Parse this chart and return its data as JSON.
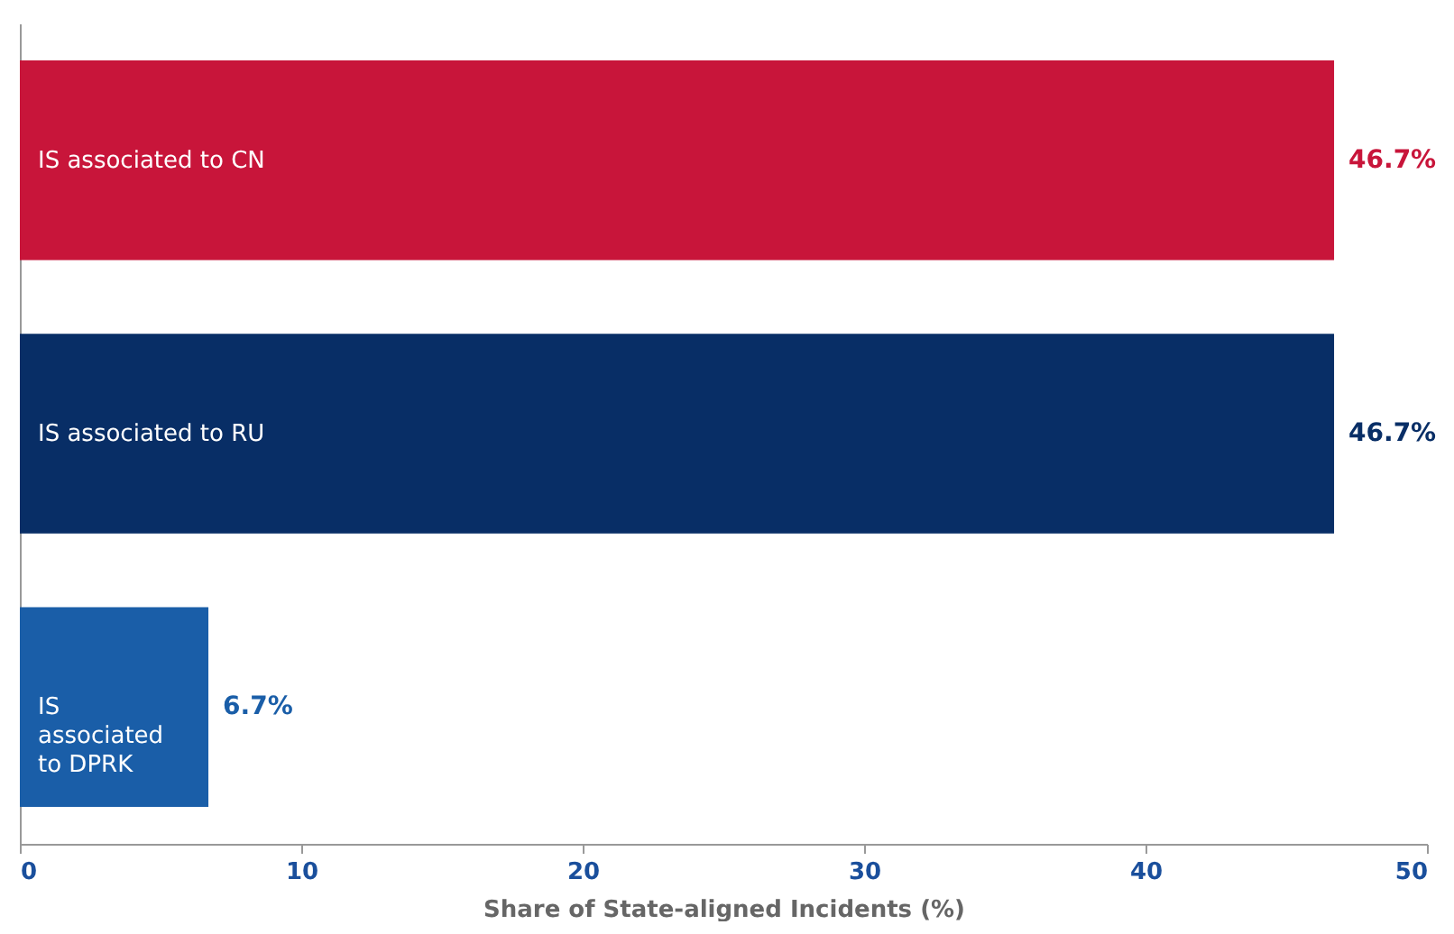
{
  "chart_data": {
    "type": "bar",
    "orientation": "horizontal",
    "categories": [
      "IS associated to CN",
      "IS associated to RU",
      "IS associated to DPRK"
    ],
    "values": [
      46.7,
      46.7,
      6.7
    ],
    "colors": [
      "#c8153a",
      "#082e66",
      "#1a5ea8"
    ],
    "value_labels": [
      "46.7%",
      "46.7%",
      "6.7%"
    ],
    "xlim": [
      0,
      50
    ],
    "xticks": [
      0,
      10,
      20,
      30,
      40,
      50
    ],
    "xlabel": "Share of State-aligned Incidents (%)",
    "grid": false
  }
}
